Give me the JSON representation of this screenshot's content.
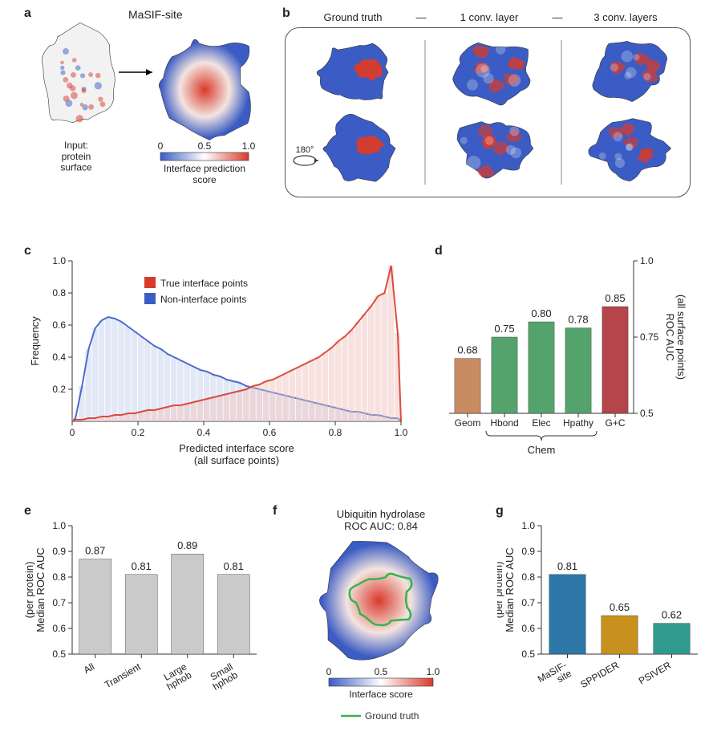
{
  "colors": {
    "blue": "#3b5cc4",
    "red": "#d93a2b",
    "pale_blue": "#c8d1ef",
    "pale_red": "#f0c6bf",
    "green_bar": "#55a36c",
    "tan_bar": "#c88b62",
    "crimson_bar": "#b6444b",
    "grey_bar": "#cacaca",
    "teal": "#2e9a90",
    "steel": "#2d76a8",
    "ochre": "#c8911e",
    "ground_truth_green": "#38b24d"
  },
  "panel_labels": {
    "a": "a",
    "b": "b",
    "c": "c",
    "d": "d",
    "e": "e",
    "f": "f",
    "g": "g"
  },
  "a": {
    "title": "MaSIF-site",
    "input_label": "Input:\nprotein\nsurface",
    "legend_label": "Interface prediction\nscore",
    "legend_ticks": [
      "0",
      "0.5",
      "1.0"
    ]
  },
  "b": {
    "headers": [
      "Ground truth",
      "1 conv. layer",
      "3 conv. layers"
    ],
    "sep": "—",
    "rotation_label": "180°"
  },
  "c": {
    "ylabel": "Frequency",
    "xlabel": "Predicted interface score\n(all surface points)",
    "legend": [
      "True interface points",
      "Non-interface points"
    ],
    "xlim": [
      0,
      1
    ],
    "ylim": [
      0,
      1
    ],
    "xticks": [
      0,
      0.2,
      0.4,
      0.6,
      0.8,
      1.0
    ],
    "xticklabels": [
      "0",
      "0.2",
      "0.4",
      "0.6",
      "0.8",
      "1.0"
    ],
    "yticks": [
      0.2,
      0.4,
      0.6,
      0.8,
      1.0
    ],
    "yticklabels": [
      "0.2",
      "0.4",
      "0.6",
      "0.8",
      "1.0"
    ],
    "n_bins": 50,
    "non_interface_hist": [
      0.02,
      0.22,
      0.45,
      0.58,
      0.63,
      0.65,
      0.64,
      0.62,
      0.59,
      0.56,
      0.53,
      0.5,
      0.47,
      0.45,
      0.42,
      0.4,
      0.38,
      0.36,
      0.34,
      0.32,
      0.31,
      0.29,
      0.28,
      0.26,
      0.25,
      0.24,
      0.22,
      0.21,
      0.2,
      0.19,
      0.18,
      0.17,
      0.16,
      0.15,
      0.14,
      0.13,
      0.12,
      0.11,
      0.1,
      0.09,
      0.08,
      0.07,
      0.06,
      0.06,
      0.05,
      0.04,
      0.04,
      0.03,
      0.02,
      0.02
    ],
    "true_interface_hist": [
      0.01,
      0.01,
      0.02,
      0.02,
      0.03,
      0.03,
      0.04,
      0.04,
      0.05,
      0.05,
      0.06,
      0.07,
      0.07,
      0.08,
      0.09,
      0.1,
      0.1,
      0.11,
      0.12,
      0.13,
      0.14,
      0.15,
      0.16,
      0.17,
      0.18,
      0.19,
      0.2,
      0.22,
      0.23,
      0.25,
      0.26,
      0.28,
      0.3,
      0.32,
      0.34,
      0.36,
      0.38,
      0.4,
      0.43,
      0.46,
      0.5,
      0.53,
      0.57,
      0.62,
      0.67,
      0.72,
      0.78,
      0.8,
      0.97,
      0.55
    ]
  },
  "d": {
    "ylabel": "ROC AUC\n(all surface points)",
    "ylim": [
      0.5,
      1.0
    ],
    "yticks": [
      0.5,
      0.75,
      1.0
    ],
    "yticklabels": [
      "0.5",
      "0.75",
      "1.0"
    ],
    "categories": [
      "Geom",
      "Hbond",
      "Elec",
      "Hpathy",
      "G+C"
    ],
    "values": [
      0.68,
      0.75,
      0.8,
      0.78,
      0.85
    ],
    "value_labels": [
      "0.68",
      "0.75",
      "0.80",
      "0.78",
      "0.85"
    ],
    "bar_colors": [
      "tan_bar",
      "green_bar",
      "green_bar",
      "green_bar",
      "crimson_bar"
    ],
    "brace_label": "Chem"
  },
  "e": {
    "ylabel": "Median ROC AUC\n(per protein)",
    "ylim": [
      0.5,
      1.0
    ],
    "yticks": [
      0.5,
      0.6,
      0.7,
      0.8,
      0.9,
      1.0
    ],
    "yticklabels": [
      "0.5",
      "0.6",
      "0.7",
      "0.8",
      "0.9",
      "1.0"
    ],
    "categories": [
      "All",
      "Transient",
      "Large\nhphob",
      "Small\nhphob"
    ],
    "values": [
      0.87,
      0.81,
      0.89,
      0.81
    ],
    "value_labels": [
      "0.87",
      "0.81",
      "0.89",
      "0.81"
    ]
  },
  "f": {
    "title": "Ubiquitin hydrolase\nROC AUC: 0.84",
    "legend_label": "Interface score",
    "legend_ticks": [
      "0",
      "0.5",
      "1.0"
    ],
    "ground_truth": "Ground truth"
  },
  "g": {
    "ylabel": "Median ROC AUC\n(per protein)",
    "ylim": [
      0.5,
      1.0
    ],
    "yticks": [
      0.5,
      0.6,
      0.7,
      0.8,
      0.9,
      1.0
    ],
    "yticklabels": [
      "0.5",
      "0.6",
      "0.7",
      "0.8",
      "0.9",
      "1.0"
    ],
    "categories": [
      "MaSIF-\nsite",
      "SPPIDER",
      "PSIVER"
    ],
    "values": [
      0.81,
      0.65,
      0.62
    ],
    "value_labels": [
      "0.81",
      "0.65",
      "0.62"
    ],
    "bar_colors": [
      "steel",
      "ochre",
      "teal"
    ]
  }
}
